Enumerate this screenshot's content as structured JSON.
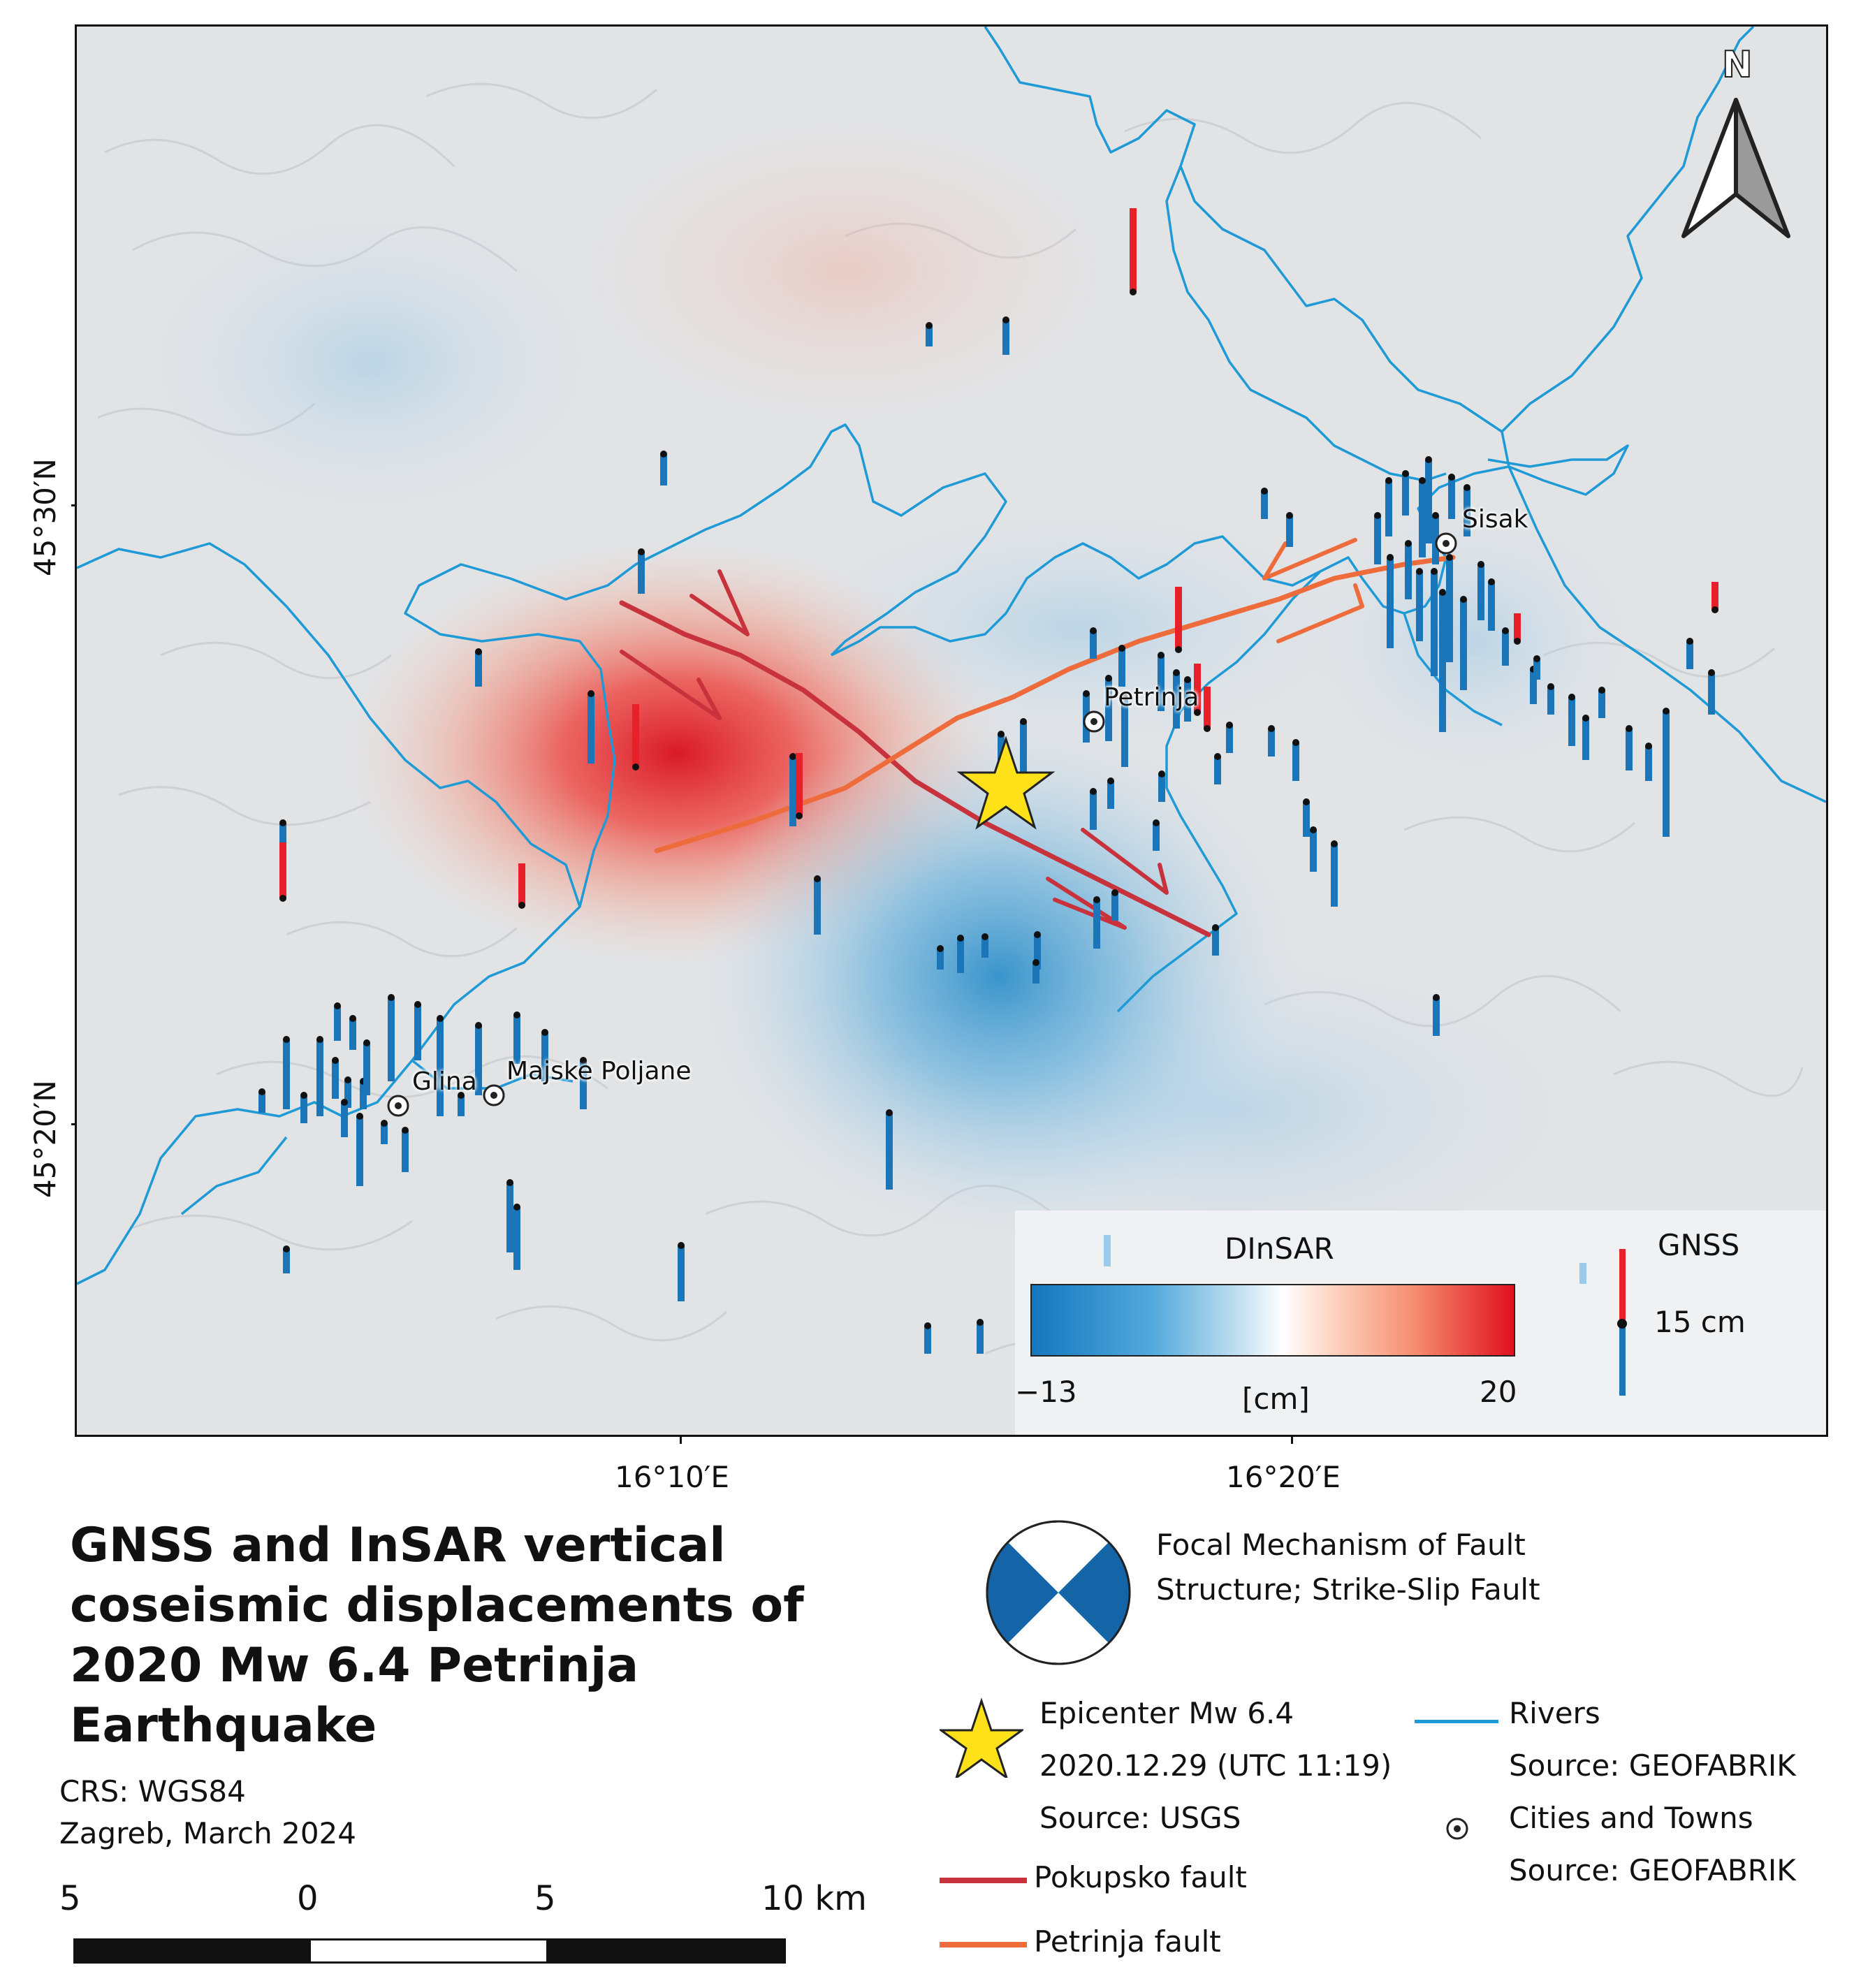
{
  "map": {
    "north_arrow_label": "N",
    "lat_ticks": [
      {
        "label": "45°30′N"
      },
      {
        "label": "45°20′N"
      }
    ],
    "lon_ticks": [
      {
        "label": "16°10′E"
      },
      {
        "label": "16°20′E"
      }
    ],
    "places": [
      {
        "name": "Sisak"
      },
      {
        "name": "Petrinja"
      },
      {
        "name": "Glina"
      },
      {
        "name": "Majske Poljane"
      }
    ],
    "colors": {
      "river": "#1e9ad6",
      "pokupsko_fault": "#c8323c",
      "petrinja_fault": "#ee6b3b",
      "gnss_up": "#e8202a",
      "gnss_down": "#1a76b8",
      "epicenter": "#ffe11a",
      "uplift": "#e0202e",
      "subsidence": "#2a8fd0"
    }
  },
  "dinsar_legend": {
    "title": "DInSAR",
    "min_label": "−13",
    "max_label": "20",
    "unit_label": "[cm]",
    "min_value": -13,
    "max_value": 20
  },
  "gnss_legend": {
    "title": "GNSS",
    "scale_label": "15 cm"
  },
  "title": "GNSS and InSAR vertical coseismic displacements of 2020 Mw 6.4 Petrinja Earthquake",
  "info": {
    "crs": "CRS: WGS84",
    "place_date": "Zagreb, March 2024"
  },
  "scale_bar": {
    "labels": [
      "5",
      "0",
      "5",
      "10 km"
    ]
  },
  "legend": {
    "focal_mechanism": "Focal Mechanism of Fault Structure; Strike-Slip Fault",
    "epicenter_line1": "Epicenter Mw 6.4",
    "epicenter_line2": "2020.12.29 (UTC 11:19)",
    "epicenter_line3": "Source: USGS",
    "pokupsko": "Pokupsko fault",
    "petrinja": "Petrinja fault",
    "rivers": "Rivers",
    "rivers_source": "Source: GEOFABRIK",
    "cities": "Cities and Towns",
    "cities_source": "Source: GEOFABRIK"
  }
}
